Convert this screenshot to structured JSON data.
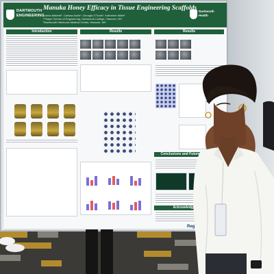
{
  "poster": {
    "title": "Manuka Honey Efficacy in Tissue Engineering Scaffolds",
    "authors_line1": "Karina Mitchell¹, Carissa Acker¹, Georgia O'Toole¹, Katherine Miller²",
    "authors_line2": "¹Thayer School of Engineering, Dartmouth College, Hanover, NH",
    "authors_line3": "²Dartmouth Hitchcock Medical Center, Hanover, NH",
    "logo_left": "DARTMOUTH\nENGINEERING",
    "logo_right": "Dartmouth\nHealth",
    "sections": {
      "introduction": "Introduction",
      "results": "Results",
      "results_right": "Results",
      "conclusions": "Conclusions and Future Directions",
      "acknowledgements": "Acknowledgements"
    },
    "footer_logo": "Regen Lab"
  },
  "colors": {
    "header_green": "#1f5f3a",
    "honey": "#c8a83e",
    "bar_purple": "#7d6fd6",
    "bar_red": "#e25b63"
  }
}
